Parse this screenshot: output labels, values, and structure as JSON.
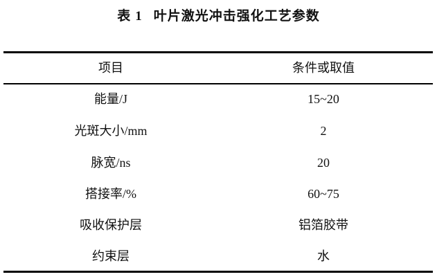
{
  "table": {
    "label": "表",
    "number": "1",
    "caption": "叶片激光冲击强化工艺参数",
    "headers": [
      "项目",
      "条件或取值"
    ],
    "rows": [
      [
        "能量/J",
        "15~20"
      ],
      [
        "光斑大小/mm",
        "2"
      ],
      [
        "脉宽/ns",
        "20"
      ],
      [
        "搭接率/%",
        "60~75"
      ],
      [
        "吸收保护层",
        "铝箔胶带"
      ],
      [
        "约束层",
        "水"
      ]
    ]
  }
}
